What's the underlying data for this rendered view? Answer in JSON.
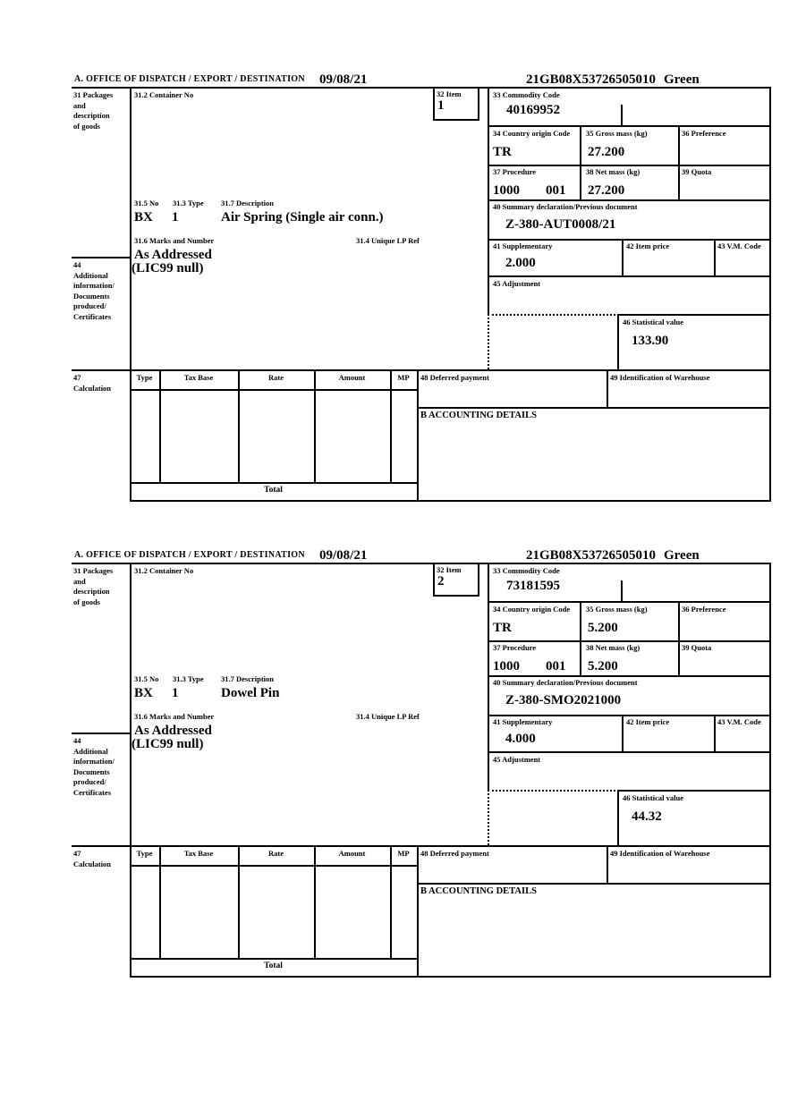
{
  "labels": {
    "office_header": "A.  OFFICE OF DISPATCH / EXPORT / DESTINATION",
    "box31_left": "31 Packages\nand\ndescription\nof goods",
    "box31_2": "31.2 Container No",
    "box32": "32 Item",
    "box33": "33 Commodity Code",
    "box34": "34 Country origin Code",
    "box35": "35 Gross mass (kg)",
    "box36": "36 Preference",
    "box37": "37 Procedure",
    "box38": "38 Net mass (kg)",
    "box39": "39 Quota",
    "box40": "40 Summary declaration/Previous document",
    "box41": "41 Supplementary",
    "box42": "42 Item price",
    "box43": "43 V.M. Code",
    "box44_left": "44\nAdditional\ninformation/\nDocuments\nproduced/\nCertificates",
    "box45": "45 Adjustment",
    "box46": "46 Statistical value",
    "box47_left": "47\nCalculation",
    "box48": "48 Deferred payment",
    "box49": "49 Identification of Warehouse",
    "box31_5": "31.5 No",
    "box31_3": "31.3 Type",
    "box31_7": "31.7 Description",
    "box31_6": "31.6 Marks and Number",
    "box31_4": "31.4 Unique LP Ref",
    "accounting": "B ACCOUNTING DETAILS",
    "total": "Total",
    "calc_headers": [
      "Type",
      "Tax Base",
      "Rate",
      "Amount",
      "MP"
    ]
  },
  "header": {
    "date": "09/08/21",
    "mrn": "21GB08X53726505010",
    "route": "Green"
  },
  "forms": [
    {
      "item_no": "1",
      "commodity_code": "40169952",
      "country_origin": "TR",
      "gross_mass": "27.200",
      "procedure": "1000",
      "procedure_suffix": "001",
      "net_mass": "27.200",
      "previous_document": "Z-380-AUT0008/21",
      "supplementary": "2.000",
      "package_no": "BX",
      "package_type": "1",
      "description": "Air Spring (Single air conn.)",
      "marks": "As Addressed",
      "additional_info": "(LIC99 null)",
      "statistical_value": "133.90"
    },
    {
      "item_no": "2",
      "commodity_code": "73181595",
      "country_origin": "TR",
      "gross_mass": "5.200",
      "procedure": "1000",
      "procedure_suffix": "001",
      "net_mass": "5.200",
      "previous_document": "Z-380-SMO2021000",
      "supplementary": "4.000",
      "package_no": "BX",
      "package_type": "1",
      "description": "Dowel Pin",
      "marks": "As Addressed",
      "additional_info": "(LIC99 null)",
      "statistical_value": "44.32"
    }
  ]
}
